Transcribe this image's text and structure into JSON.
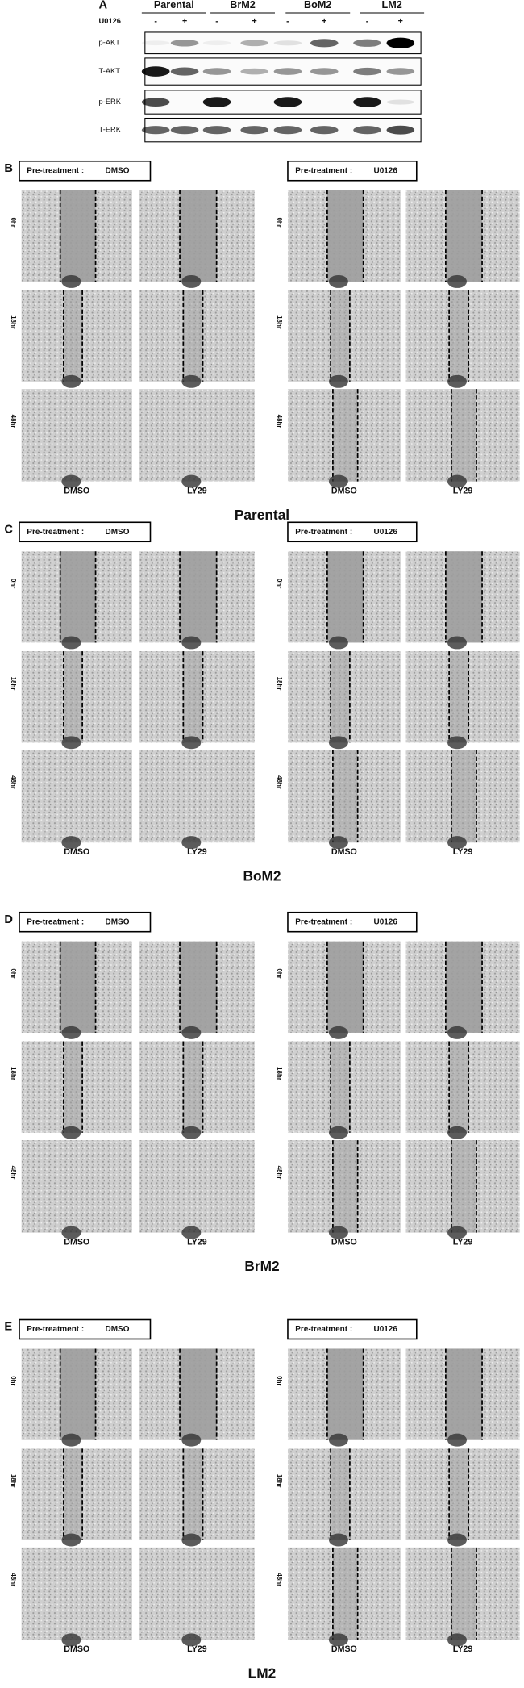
{
  "panel_a": {
    "label": "A",
    "treatment": "U0126",
    "groups": [
      "Parental",
      "BrM2",
      "BoM2",
      "LM2"
    ],
    "signs": [
      "-",
      "+",
      "-",
      "+",
      "-",
      "+",
      "-",
      "+"
    ],
    "blots": [
      "p-AKT",
      "T-AKT",
      "p-ERK",
      "T-ERK"
    ]
  },
  "panels": [
    {
      "label": "B",
      "title": "Parental",
      "pretreatments": [
        {
          "label": "Pre-treatment :",
          "drug": "DMSO"
        },
        {
          "label": "Pre-treatment :",
          "drug": "U0126"
        }
      ],
      "times": [
        "0hr",
        "18hr",
        "48hr"
      ],
      "columns": [
        "DMSO",
        "LY29",
        "DMSO",
        "LY29"
      ]
    },
    {
      "label": "C",
      "title": "BoM2",
      "pretreatments": [
        {
          "label": "Pre-treatment :",
          "drug": "DMSO"
        },
        {
          "label": "Pre-treatment :",
          "drug": "U0126"
        }
      ],
      "times": [
        "0hr",
        "18hr",
        "48hr"
      ],
      "columns": [
        "DMSO",
        "LY29",
        "DMSO",
        "LY29"
      ]
    },
    {
      "label": "D",
      "title": "BrM2",
      "pretreatments": [
        {
          "label": "Pre-treatment :",
          "drug": "DMSO"
        },
        {
          "label": "Pre-treatment :",
          "drug": "U0126"
        }
      ],
      "times": [
        "0hr",
        "18hr",
        "48hr"
      ],
      "columns": [
        "DMSO",
        "LY29",
        "DMSO",
        "LY29"
      ]
    },
    {
      "label": "E",
      "title": "LM2",
      "pretreatments": [
        {
          "label": "Pre-treatment :",
          "drug": "DMSO"
        },
        {
          "label": "Pre-treatment :",
          "drug": "U0126"
        }
      ],
      "times": [
        "0hr",
        "18hr",
        "48hr"
      ],
      "columns": [
        "DMSO",
        "LY29",
        "DMSO",
        "LY29"
      ]
    }
  ]
}
